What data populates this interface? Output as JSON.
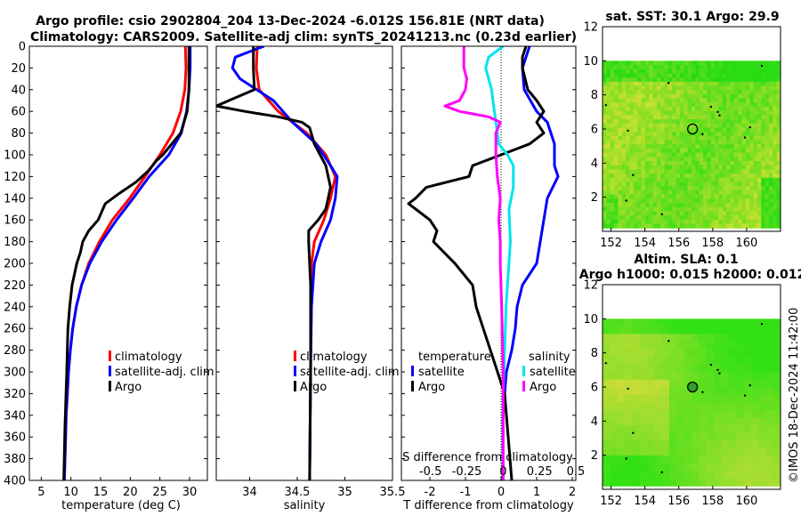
{
  "titles": {
    "main_line1": "Argo profile: csio 2902804_204 13-Dec-2024 -6.012S 156.81E (NRT data)",
    "main_line2": "Climatology: CARS2009. Satellite-adj clim: synTS_20241213.nc (0.23d earlier)",
    "map_top": "sat. SST: 30.1 Argo: 29.9",
    "map_bottom_line1": "Altim. SLA: 0.1",
    "map_bottom_line2": "Argo h1000: 0.015 h2000: 0.012",
    "credit": "©IMOS 18-Dec-2024 11:42:00"
  },
  "legend": {
    "climatology": "climatology",
    "satellite_adj": "satellite-adj. clim",
    "argo": "Argo",
    "temperature": "temperature",
    "salinity": "salinity",
    "satellite": "satellite",
    "s_diff_title": "S difference from climatology"
  },
  "colors": {
    "clim": "#ff0000",
    "sat": "#0000ff",
    "argo": "#000000",
    "sal_sat": "#00e5ee",
    "sal_argo": "#ff00ff"
  },
  "chart_data": [
    {
      "id": "temperature",
      "type": "line",
      "xlabel": "temperature (deg C)",
      "xlim": [
        3,
        33
      ],
      "xticks": [
        5,
        10,
        15,
        20,
        25,
        30
      ],
      "ylim": [
        0,
        400
      ],
      "yticks": [
        0,
        20,
        40,
        60,
        80,
        100,
        120,
        140,
        160,
        180,
        200,
        220,
        240,
        260,
        280,
        300,
        320,
        340,
        360,
        380,
        400
      ],
      "series": [
        {
          "name": "climatology",
          "color": "#ff0000",
          "depth": [
            0,
            20,
            40,
            60,
            80,
            100,
            120,
            140,
            160,
            180,
            200,
            220,
            240,
            260,
            280,
            300,
            320,
            340,
            360,
            380,
            400
          ],
          "values": [
            29.3,
            29.4,
            29.2,
            28.5,
            27.2,
            25.0,
            22.5,
            19.9,
            17.0,
            14.8,
            13.0,
            11.8,
            10.9,
            10.3,
            9.9,
            9.6,
            9.4,
            9.2,
            9.1,
            9.0,
            8.9
          ]
        },
        {
          "name": "satellite",
          "color": "#0000ff",
          "depth": [
            0,
            20,
            40,
            60,
            80,
            100,
            120,
            140,
            160,
            180,
            200,
            220,
            240,
            260,
            280,
            300,
            320,
            340,
            360,
            380,
            400
          ],
          "values": [
            30.1,
            30.1,
            29.9,
            29.5,
            28.6,
            26.5,
            23.2,
            20.5,
            17.7,
            15.2,
            13.2,
            11.8,
            10.9,
            10.3,
            9.9,
            9.6,
            9.4,
            9.2,
            9.1,
            9.0,
            8.9
          ]
        },
        {
          "name": "Argo",
          "color": "#000000",
          "depth": [
            0,
            20,
            40,
            60,
            80,
            100,
            105,
            115,
            125,
            135,
            145,
            160,
            170,
            180,
            190,
            200,
            220,
            240,
            260,
            300,
            350,
            400
          ],
          "values": [
            29.9,
            29.9,
            29.9,
            29.6,
            28.5,
            25.5,
            24.5,
            23.0,
            21.0,
            18.3,
            15.8,
            14.6,
            13.0,
            12.0,
            11.6,
            11.0,
            10.2,
            9.8,
            9.5,
            9.3,
            9.0,
            8.8
          ]
        }
      ]
    },
    {
      "id": "salinity",
      "type": "line",
      "xlabel": "salinity",
      "xlim": [
        33.65,
        35.5
      ],
      "xticks": [
        34,
        34.5,
        35,
        35.5
      ],
      "ylim": [
        0,
        400
      ],
      "series": [
        {
          "name": "climatology",
          "color": "#ff0000",
          "depth": [
            0,
            20,
            40,
            60,
            80,
            100,
            120,
            140,
            160,
            180,
            200,
            240,
            300,
            400
          ],
          "values": [
            34.08,
            34.07,
            34.1,
            34.3,
            34.6,
            34.8,
            34.9,
            34.85,
            34.78,
            34.68,
            34.65,
            34.64,
            34.64,
            34.63
          ]
        },
        {
          "name": "satellite",
          "color": "#0000ff",
          "depth": [
            0,
            10,
            20,
            30,
            50,
            70,
            90,
            110,
            120,
            140,
            160,
            180,
            200,
            240,
            300,
            400
          ],
          "values": [
            34.15,
            33.85,
            33.82,
            33.9,
            34.25,
            34.45,
            34.7,
            34.85,
            34.92,
            34.9,
            34.85,
            34.75,
            34.68,
            34.65,
            34.64,
            34.63
          ]
        },
        {
          "name": "Argo",
          "color": "#000000",
          "depth": [
            0,
            20,
            40,
            55,
            60,
            65,
            70,
            75,
            90,
            110,
            130,
            150,
            160,
            170,
            180,
            200,
            220,
            240,
            300,
            400
          ],
          "values": [
            34.04,
            34.04,
            34.05,
            33.65,
            33.95,
            34.3,
            34.55,
            34.63,
            34.68,
            34.8,
            34.85,
            34.8,
            34.72,
            34.62,
            34.62,
            34.63,
            34.64,
            34.64,
            34.64,
            34.63
          ]
        }
      ]
    },
    {
      "id": "difference",
      "type": "line",
      "xlabel": "T difference from climatology",
      "xlim": [
        -2.8,
        2.1
      ],
      "xticks": [
        -2,
        -1,
        0,
        1,
        2
      ],
      "s_xlim": [
        -0.7,
        0.5
      ],
      "s_xticks": [
        -0.5,
        -0.25,
        0,
        0.25,
        0.5
      ],
      "s_xticklabels": [
        "-0.5",
        "-0.25",
        "0",
        "0.25",
        "0.5"
      ],
      "ylim": [
        0,
        400
      ],
      "series": [
        {
          "name": "temperature satellite",
          "axis": "T",
          "color": "#0000ff",
          "depth": [
            0,
            10,
            20,
            40,
            60,
            70,
            80,
            90,
            100,
            110,
            120,
            140,
            160,
            180,
            200,
            220,
            240,
            260,
            280,
            300,
            320,
            340,
            360,
            380,
            400
          ],
          "values": [
            0.8,
            0.7,
            0.6,
            0.65,
            1.0,
            1.3,
            1.4,
            1.5,
            1.5,
            1.5,
            1.6,
            1.3,
            1.2,
            1.1,
            1.0,
            0.6,
            0.45,
            0.4,
            0.3,
            0.15,
            0.1,
            0.05,
            0.05,
            0.05,
            0.05
          ]
        },
        {
          "name": "temperature Argo",
          "axis": "T",
          "color": "#000000",
          "depth": [
            0,
            10,
            20,
            40,
            50,
            60,
            70,
            80,
            90,
            100,
            110,
            120,
            130,
            140,
            145,
            150,
            160,
            170,
            180,
            190,
            200,
            220,
            240,
            260,
            280,
            300,
            320,
            360,
            400
          ],
          "values": [
            0.7,
            0.6,
            0.6,
            0.75,
            1.0,
            1.2,
            1.0,
            1.2,
            0.8,
            0.0,
            -0.8,
            -0.9,
            -2.1,
            -2.4,
            -2.6,
            -2.4,
            -2.0,
            -1.8,
            -1.9,
            -1.6,
            -1.3,
            -0.8,
            -0.7,
            -0.5,
            -0.3,
            -0.1,
            0.1,
            0.2,
            0.3
          ]
        },
        {
          "name": "salinity satellite",
          "axis": "S",
          "color": "#00e5ee",
          "depth": [
            0,
            10,
            20,
            40,
            60,
            70,
            80,
            90,
            100,
            110,
            130,
            150,
            180,
            200,
            240,
            280,
            320,
            360,
            400
          ],
          "values": [
            0.0,
            -0.1,
            -0.12,
            -0.08,
            -0.06,
            -0.05,
            -0.04,
            -0.03,
            0.03,
            0.07,
            0.07,
            0.04,
            0.05,
            0.04,
            0.02,
            0.01,
            0.0,
            0.0,
            0.0
          ]
        },
        {
          "name": "salinity Argo",
          "axis": "S",
          "color": "#ff00ff",
          "depth": [
            0,
            10,
            20,
            30,
            40,
            50,
            55,
            60,
            65,
            70,
            80,
            100,
            120,
            140,
            160,
            180,
            200,
            240,
            300,
            400
          ],
          "values": [
            -0.27,
            -0.27,
            -0.27,
            -0.25,
            -0.26,
            -0.3,
            -0.4,
            -0.3,
            -0.1,
            -0.02,
            -0.05,
            -0.05,
            -0.04,
            -0.02,
            -0.03,
            -0.02,
            -0.02,
            -0.01,
            0.0,
            0.0
          ]
        }
      ]
    },
    {
      "id": "sst_map",
      "type": "heatmap",
      "title": "sat. SST: 30.1 Argo: 29.9",
      "xlim": [
        151.5,
        162
      ],
      "ylim": [
        0,
        12
      ],
      "xticks": [
        152,
        154,
        156,
        158,
        160
      ],
      "yticks": [
        2,
        4,
        6,
        8,
        10,
        12
      ],
      "data_ymax": 10,
      "argo_position": [
        156.81,
        6.0
      ]
    },
    {
      "id": "sla_map",
      "type": "heatmap",
      "title": "Altim. SLA: 0.1",
      "xlim": [
        151.5,
        162
      ],
      "ylim": [
        0,
        12
      ],
      "xticks": [
        152,
        154,
        156,
        158,
        160
      ],
      "yticks": [
        2,
        4,
        6,
        8,
        10,
        12
      ],
      "data_ymax": 10,
      "argo_position": [
        156.81,
        6.0
      ]
    }
  ]
}
